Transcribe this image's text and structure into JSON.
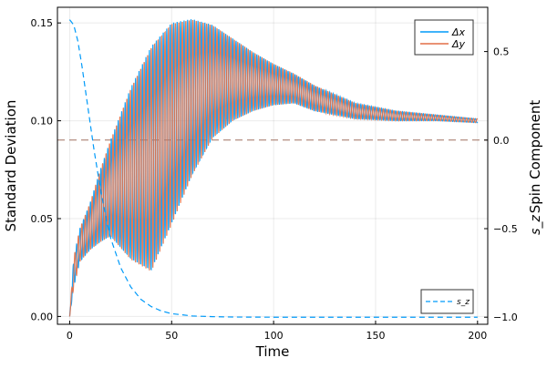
{
  "chart_data": {
    "type": "line",
    "xlabel": "Time",
    "ylabel": "Standard Deviation",
    "y2label": "Spin Component",
    "y2label_symbol": "s_z",
    "xlim": [
      -6,
      205
    ],
    "ylim": [
      -0.004,
      0.158
    ],
    "y2lim": [
      -1.04,
      0.75
    ],
    "xticks": [
      0,
      50,
      100,
      150,
      200
    ],
    "xtick_labels": [
      "0",
      "50",
      "100",
      "150",
      "200"
    ],
    "yticks": [
      0,
      0.05,
      0.1,
      0.15
    ],
    "ytick_labels": [
      "0.00",
      "0.05",
      "0.10",
      "0.15"
    ],
    "y2ticks": [
      -1,
      -0.5,
      0,
      0.5
    ],
    "y2tick_labels": [
      "−1.0",
      "−0.5",
      "0.0",
      "0.5"
    ],
    "grid": true,
    "legend_top": {
      "placement": "top-right",
      "entries": [
        "Δx",
        "Δy"
      ]
    },
    "legend_bottom": {
      "placement": "bottom-right",
      "entries": [
        "s_z"
      ]
    },
    "oscillation_period": 1.7,
    "envelope": {
      "t": [
        0,
        2,
        5,
        10,
        15,
        20,
        30,
        40,
        50,
        60,
        70,
        80,
        90,
        100,
        110,
        120,
        140,
        160,
        180,
        200
      ],
      "upper": [
        0,
        0.03,
        0.045,
        0.058,
        0.075,
        0.09,
        0.117,
        0.138,
        0.15,
        0.152,
        0.149,
        0.142,
        0.135,
        0.129,
        0.124,
        0.118,
        0.109,
        0.105,
        0.103,
        0.101
      ],
      "lower": [
        0,
        0.015,
        0.028,
        0.034,
        0.038,
        0.041,
        0.029,
        0.023,
        0.047,
        0.072,
        0.091,
        0.1,
        0.105,
        0.108,
        0.109,
        0.105,
        0.101,
        0.1,
        0.1,
        0.099
      ]
    },
    "series": [
      {
        "name": "Δx",
        "axis": "left",
        "color": "#009af9",
        "style": "solid",
        "phase": 0
      },
      {
        "name": "Δy",
        "axis": "left",
        "color": "#e26f46",
        "style": "solid",
        "phase": 0.5
      },
      {
        "name": "s_z",
        "axis": "right",
        "color": "#009af9",
        "style": "dashed",
        "x": [
          0,
          2,
          4,
          6,
          8,
          10,
          12,
          14,
          16,
          18,
          20,
          25,
          30,
          35,
          40,
          45,
          50,
          60,
          70,
          80,
          100,
          150,
          200
        ],
        "y": [
          0.68,
          0.65,
          0.56,
          0.42,
          0.26,
          0.1,
          -0.06,
          -0.2,
          -0.33,
          -0.45,
          -0.55,
          -0.72,
          -0.83,
          -0.9,
          -0.94,
          -0.965,
          -0.98,
          -0.993,
          -0.997,
          -0.999,
          -1.0,
          -1.0,
          -1.0
        ]
      }
    ],
    "reference_line": {
      "axis": "right",
      "y": 0,
      "color": "#a07060",
      "style": "dashed"
    }
  }
}
